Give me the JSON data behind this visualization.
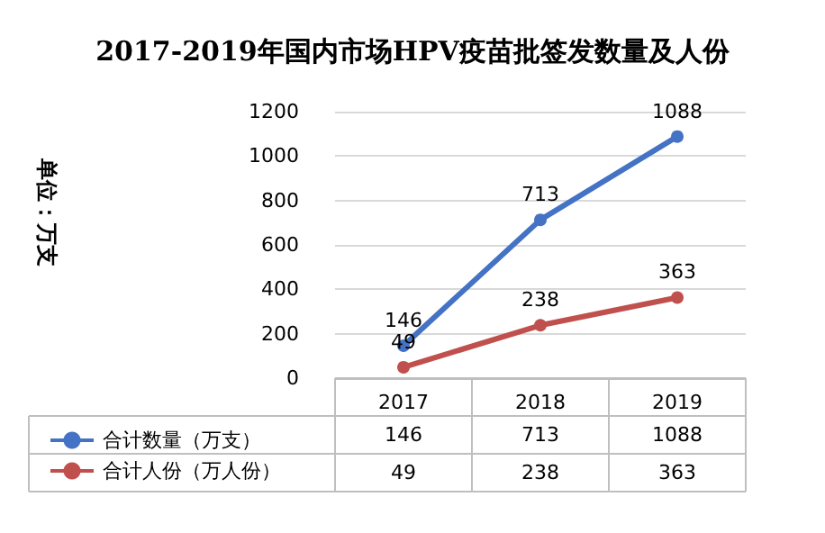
{
  "chart_data": {
    "type": "line",
    "title": "2017-2019年国内市场HPV疫苗批签发数量及人份",
    "categories": [
      "2017",
      "2018",
      "2019"
    ],
    "series": [
      {
        "name": "合计数量（万支）",
        "color": "#4472c4",
        "values": [
          146,
          713,
          1088
        ]
      },
      {
        "name": "合计人份（万人份）",
        "color": "#c0504d",
        "values": [
          49,
          238,
          363
        ]
      }
    ],
    "ylim": [
      0,
      1200
    ],
    "yticks": [
      0,
      200,
      400,
      600,
      800,
      {
        "value": 1000,
        "label": "1000"
      },
      {
        "value": 1200,
        "label": "1200"
      }
    ],
    "grid": "y",
    "legend": "bottom",
    "marker": "circle",
    "data_labels": true,
    "annotations": [
      "单位：万支",
      "146",
      "713",
      "1088",
      "49",
      "238",
      "363"
    ]
  }
}
